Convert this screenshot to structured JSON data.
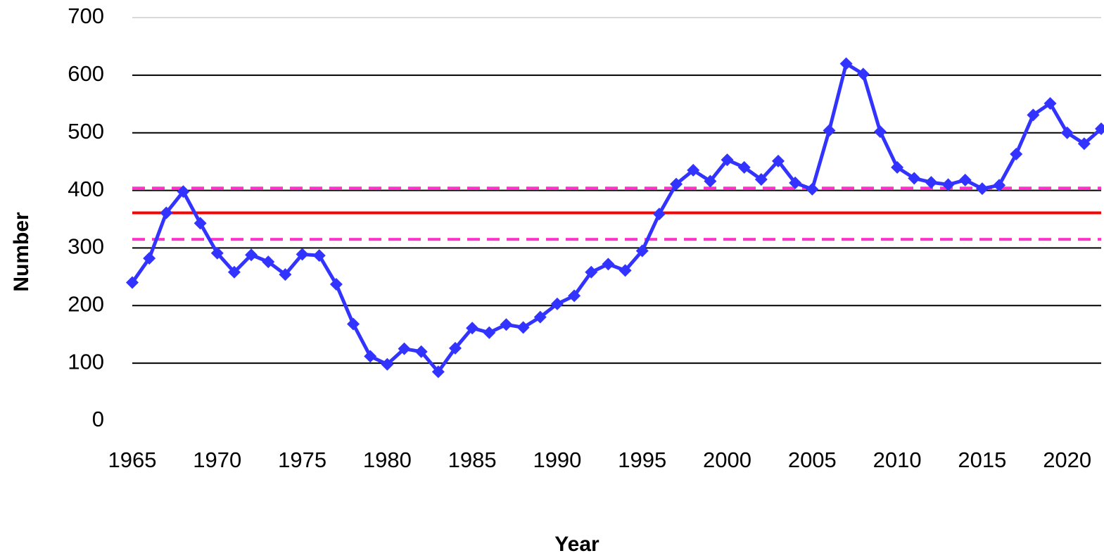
{
  "chart_data": {
    "type": "line",
    "x_label": "Year",
    "y_label": "Number",
    "x": [
      1965,
      1966,
      1967,
      1968,
      1969,
      1970,
      1971,
      1972,
      1973,
      1974,
      1975,
      1976,
      1977,
      1978,
      1979,
      1980,
      1981,
      1982,
      1983,
      1984,
      1985,
      1986,
      1987,
      1988,
      1989,
      1990,
      1991,
      1992,
      1993,
      1994,
      1995,
      1996,
      1997,
      1998,
      1999,
      2000,
      2001,
      2002,
      2003,
      2004,
      2005,
      2006,
      2007,
      2008,
      2009,
      2010,
      2011,
      2012,
      2013,
      2014,
      2015,
      2016,
      2017,
      2018,
      2019,
      2020,
      2021,
      2022
    ],
    "values": [
      240,
      282,
      361,
      398,
      343,
      291,
      258,
      288,
      276,
      254,
      289,
      287,
      237,
      168,
      112,
      98,
      125,
      120,
      85,
      126,
      161,
      153,
      167,
      162,
      180,
      203,
      217,
      258,
      272,
      261,
      295,
      359,
      411,
      435,
      416,
      453,
      440,
      419,
      451,
      413,
      402,
      504,
      620,
      602,
      502,
      440,
      421,
      414,
      410,
      418,
      403,
      409,
      463,
      531,
      551,
      500,
      481,
      507
    ],
    "color": "#3333ff",
    "reference_lines": [
      {
        "value": 361,
        "color": "#ff0000",
        "style": "solid"
      },
      {
        "value": 404,
        "color": "#ff33cc",
        "style": "dashed"
      },
      {
        "value": 315,
        "color": "#ff33cc",
        "style": "dashed"
      }
    ],
    "xlim": [
      1965,
      2022
    ],
    "xticks": [
      1965,
      1970,
      1975,
      1980,
      1985,
      1990,
      1995,
      2000,
      2005,
      2010,
      2015,
      2020
    ],
    "ylim": [
      0,
      700
    ],
    "yticks": [
      0,
      100,
      200,
      300,
      400,
      500,
      600,
      700
    ],
    "grid": true
  }
}
